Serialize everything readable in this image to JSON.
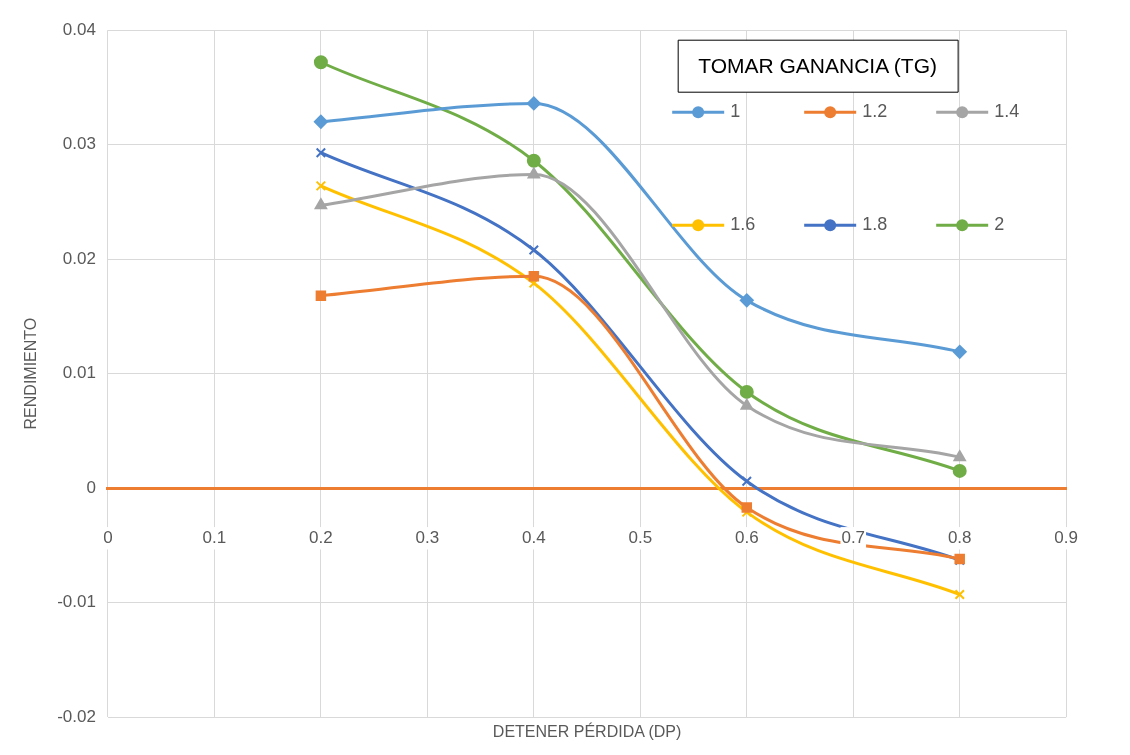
{
  "chart_data": {
    "type": "line",
    "xlabel": "DETENER PÉRDIDA (DP)",
    "ylabel": "RENDIMIENTO",
    "legend_title": "TOMAR GANANCIA (TG)",
    "legend": "top right",
    "grid": true,
    "x": [
      0.2,
      0.4,
      0.6,
      0.8
    ],
    "xlim": [
      0,
      0.9
    ],
    "xticks": [
      0,
      0.1,
      0.2,
      0.3,
      0.4,
      0.5,
      0.6,
      0.7,
      0.8,
      0.9
    ],
    "ylim": [
      -0.02,
      0.04
    ],
    "yticks": [
      -0.02,
      -0.01,
      0,
      0.01,
      0.02,
      0.03,
      0.04
    ],
    "series": [
      {
        "name": "1",
        "color": "#5b9bd5",
        "marker": "diamond",
        "values": [
          0.032,
          0.0336,
          0.0164,
          0.0119
        ]
      },
      {
        "name": "1.2",
        "color": "#ed7d31",
        "marker": "square",
        "values": [
          0.0168,
          0.0185,
          -0.0017,
          -0.0062
        ]
      },
      {
        "name": "1.4",
        "color": "#a5a5a5",
        "marker": "triangle",
        "values": [
          0.0247,
          0.0274,
          0.0072,
          0.0027
        ]
      },
      {
        "name": "1.6",
        "color": "#ffc000",
        "marker": "cross",
        "values": [
          0.0264,
          0.0179,
          -0.0021,
          -0.0093
        ]
      },
      {
        "name": "1.8",
        "color": "#4472c4",
        "marker": "cross",
        "values": [
          0.0293,
          0.0208,
          0.0006,
          -0.0063
        ]
      },
      {
        "name": "2",
        "color": "#70ad47",
        "marker": "circle",
        "values": [
          0.0372,
          0.0286,
          0.0084,
          0.0015
        ]
      }
    ]
  }
}
